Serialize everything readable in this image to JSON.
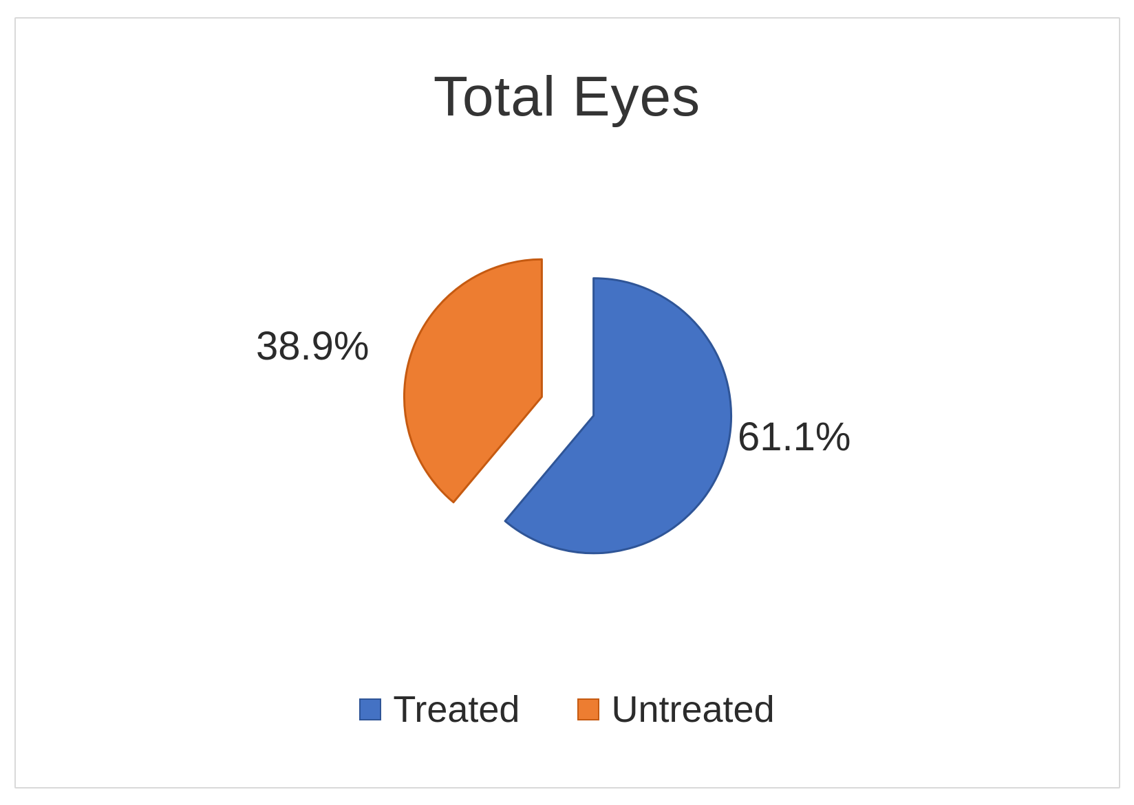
{
  "chart_data": {
    "type": "pie",
    "title": "Total Eyes",
    "exploded": true,
    "start_angle_deg": 0,
    "direction": "clockwise",
    "legend_position": "bottom",
    "data_labels": "outside-percentage",
    "background_color": "#ffffff",
    "frame_border_color": "#d9d9d9",
    "slices": [
      {
        "label": "Treated",
        "value": 61.1,
        "display": "61.1%",
        "color": "#4472C4",
        "border_color": "#2F5597"
      },
      {
        "label": "Untreated",
        "value": 38.9,
        "display": "38.9%",
        "color": "#ED7D31",
        "border_color": "#C55A11"
      }
    ]
  }
}
